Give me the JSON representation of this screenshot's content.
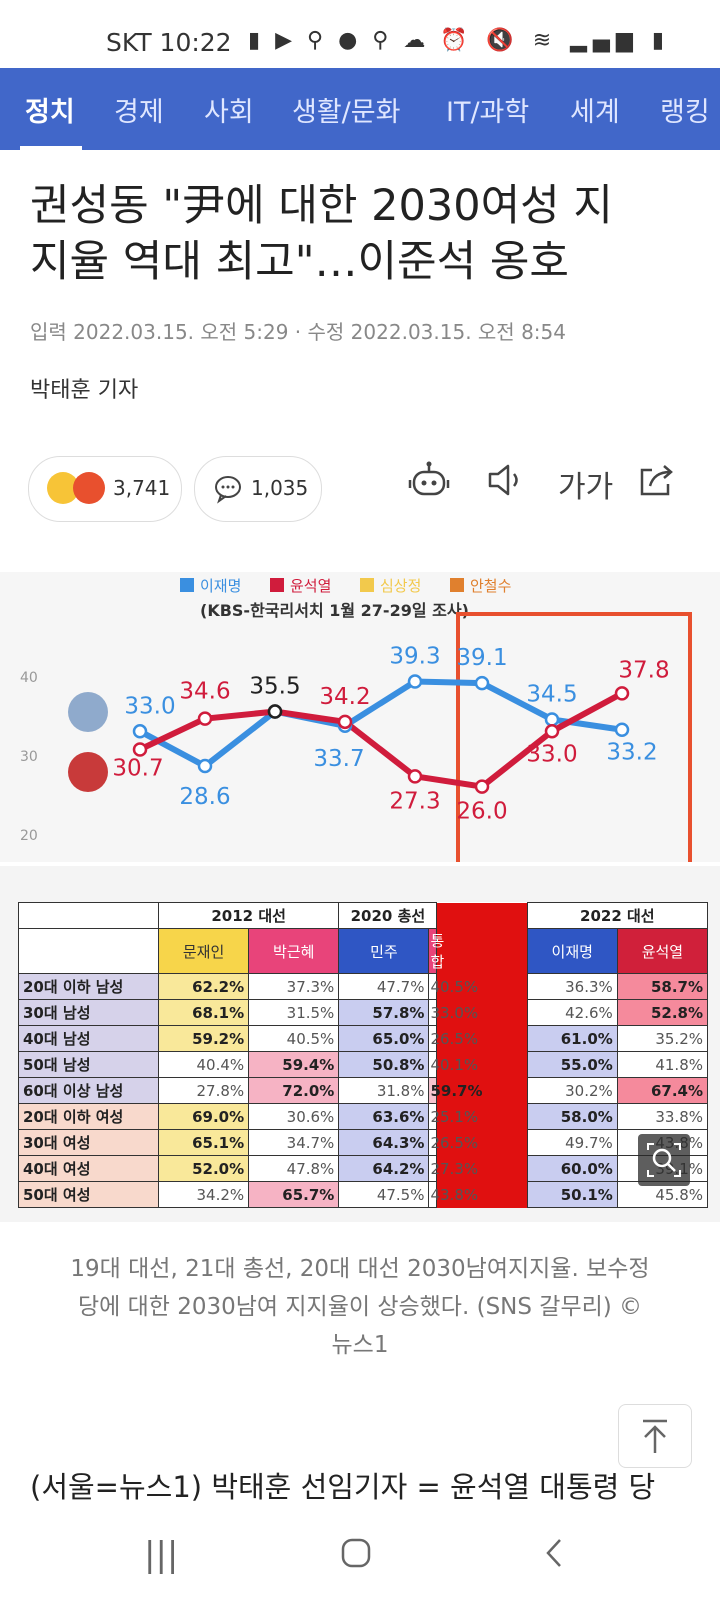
{
  "status_bar": {
    "carrier": "SKT",
    "time": "10:22",
    "icons_left": [
      "chat-bubble-icon",
      "youtube-icon",
      "link-icon",
      "talk-icon",
      "link-icon",
      "cloud-icon"
    ],
    "icons_right": [
      "alarm-icon",
      "mute-icon",
      "wifi-icon",
      "signal-icon",
      "battery-icon"
    ]
  },
  "nav": {
    "tabs": [
      {
        "label": "정치",
        "active": true
      },
      {
        "label": "경제"
      },
      {
        "label": "사회"
      },
      {
        "label": "생활/문화"
      },
      {
        "label": "IT/과학"
      },
      {
        "label": "세계"
      },
      {
        "label": "랭킹"
      }
    ]
  },
  "article": {
    "headline_line1": "권성동 \"尹에 대한 2030여성 지",
    "headline_line2": "지율 역대 최고\"…이준석 옹호",
    "meta": "입력 2022.03.15. 오전 5:29 · 수정 2022.03.15. 오전 8:54",
    "author": "박태훈 기자",
    "reactions_count": "3,741",
    "comments_count": "1,035",
    "tools": {
      "bot": "robot-icon",
      "audio": "speaker-icon",
      "font": "가가",
      "share": "share-icon"
    },
    "caption_line1": "19대 대선, 21대 총선, 20대 대선 2030남여지지율. 보수정",
    "caption_line2": "당에 대한 2030남여 지지율이 상승했다. (SNS 갈무리) ©",
    "caption_line3": "뉴스1",
    "body_start": "(서울=뉴스1) 박태훈 선임기자 = 윤석열 대통령 당"
  },
  "chart_data": {
    "type": "line",
    "legend": [
      "이재명",
      "윤석열",
      "심상정",
      "안철수"
    ],
    "source": "(KBS-한국리서치 1월 27-29일 조사)",
    "y_ticks": [
      "40",
      "30",
      "20"
    ],
    "ylim": [
      20,
      40
    ],
    "series": [
      {
        "name": "이재명",
        "color": "#3a8fe0",
        "values": [
          33.0,
          28.6,
          35.5,
          33.7,
          39.3,
          39.1,
          34.5,
          33.2
        ]
      },
      {
        "name": "윤석열",
        "color": "#d01c3c",
        "values": [
          30.7,
          34.6,
          35.5,
          34.2,
          27.3,
          26.0,
          33.0,
          37.8
        ]
      }
    ]
  },
  "table": {
    "groups": [
      "2012 대선",
      "2020 총선",
      "2022 대선"
    ],
    "subheaders": [
      "문재인",
      "박근혜",
      "민주",
      "통합",
      "이재명",
      "윤석열"
    ],
    "rows": [
      {
        "label": "20대 이하 남성",
        "values": [
          "62.2%",
          "37.3%",
          "47.7%",
          "40.5%",
          "36.3%",
          "58.7%"
        ]
      },
      {
        "label": "30대 남성",
        "values": [
          "68.1%",
          "31.5%",
          "57.8%",
          "33.0%",
          "42.6%",
          "52.8%"
        ]
      },
      {
        "label": "40대 남성",
        "values": [
          "59.2%",
          "40.5%",
          "65.0%",
          "26.5%",
          "61.0%",
          "35.2%"
        ]
      },
      {
        "label": "50대 남성",
        "values": [
          "40.4%",
          "59.4%",
          "50.8%",
          "40.1%",
          "55.0%",
          "41.8%"
        ]
      },
      {
        "label": "60대 이상 남성",
        "values": [
          "27.8%",
          "72.0%",
          "31.8%",
          "59.7%",
          "30.2%",
          "67.4%"
        ]
      },
      {
        "label": "20대 이하 여성",
        "values": [
          "69.0%",
          "30.6%",
          "63.6%",
          "25.1%",
          "58.0%",
          "33.8%"
        ]
      },
      {
        "label": "30대 여성",
        "values": [
          "65.1%",
          "34.7%",
          "64.3%",
          "26.5%",
          "49.7%",
          "43.8%"
        ]
      },
      {
        "label": "40대 여성",
        "values": [
          "52.0%",
          "47.8%",
          "64.2%",
          "27.3%",
          "60.0%",
          "39.1%"
        ]
      },
      {
        "label": "50대 여성",
        "values": [
          "34.2%",
          "65.7%",
          "47.5%",
          "43.8%",
          "50.1%",
          "45.8%"
        ]
      }
    ]
  }
}
